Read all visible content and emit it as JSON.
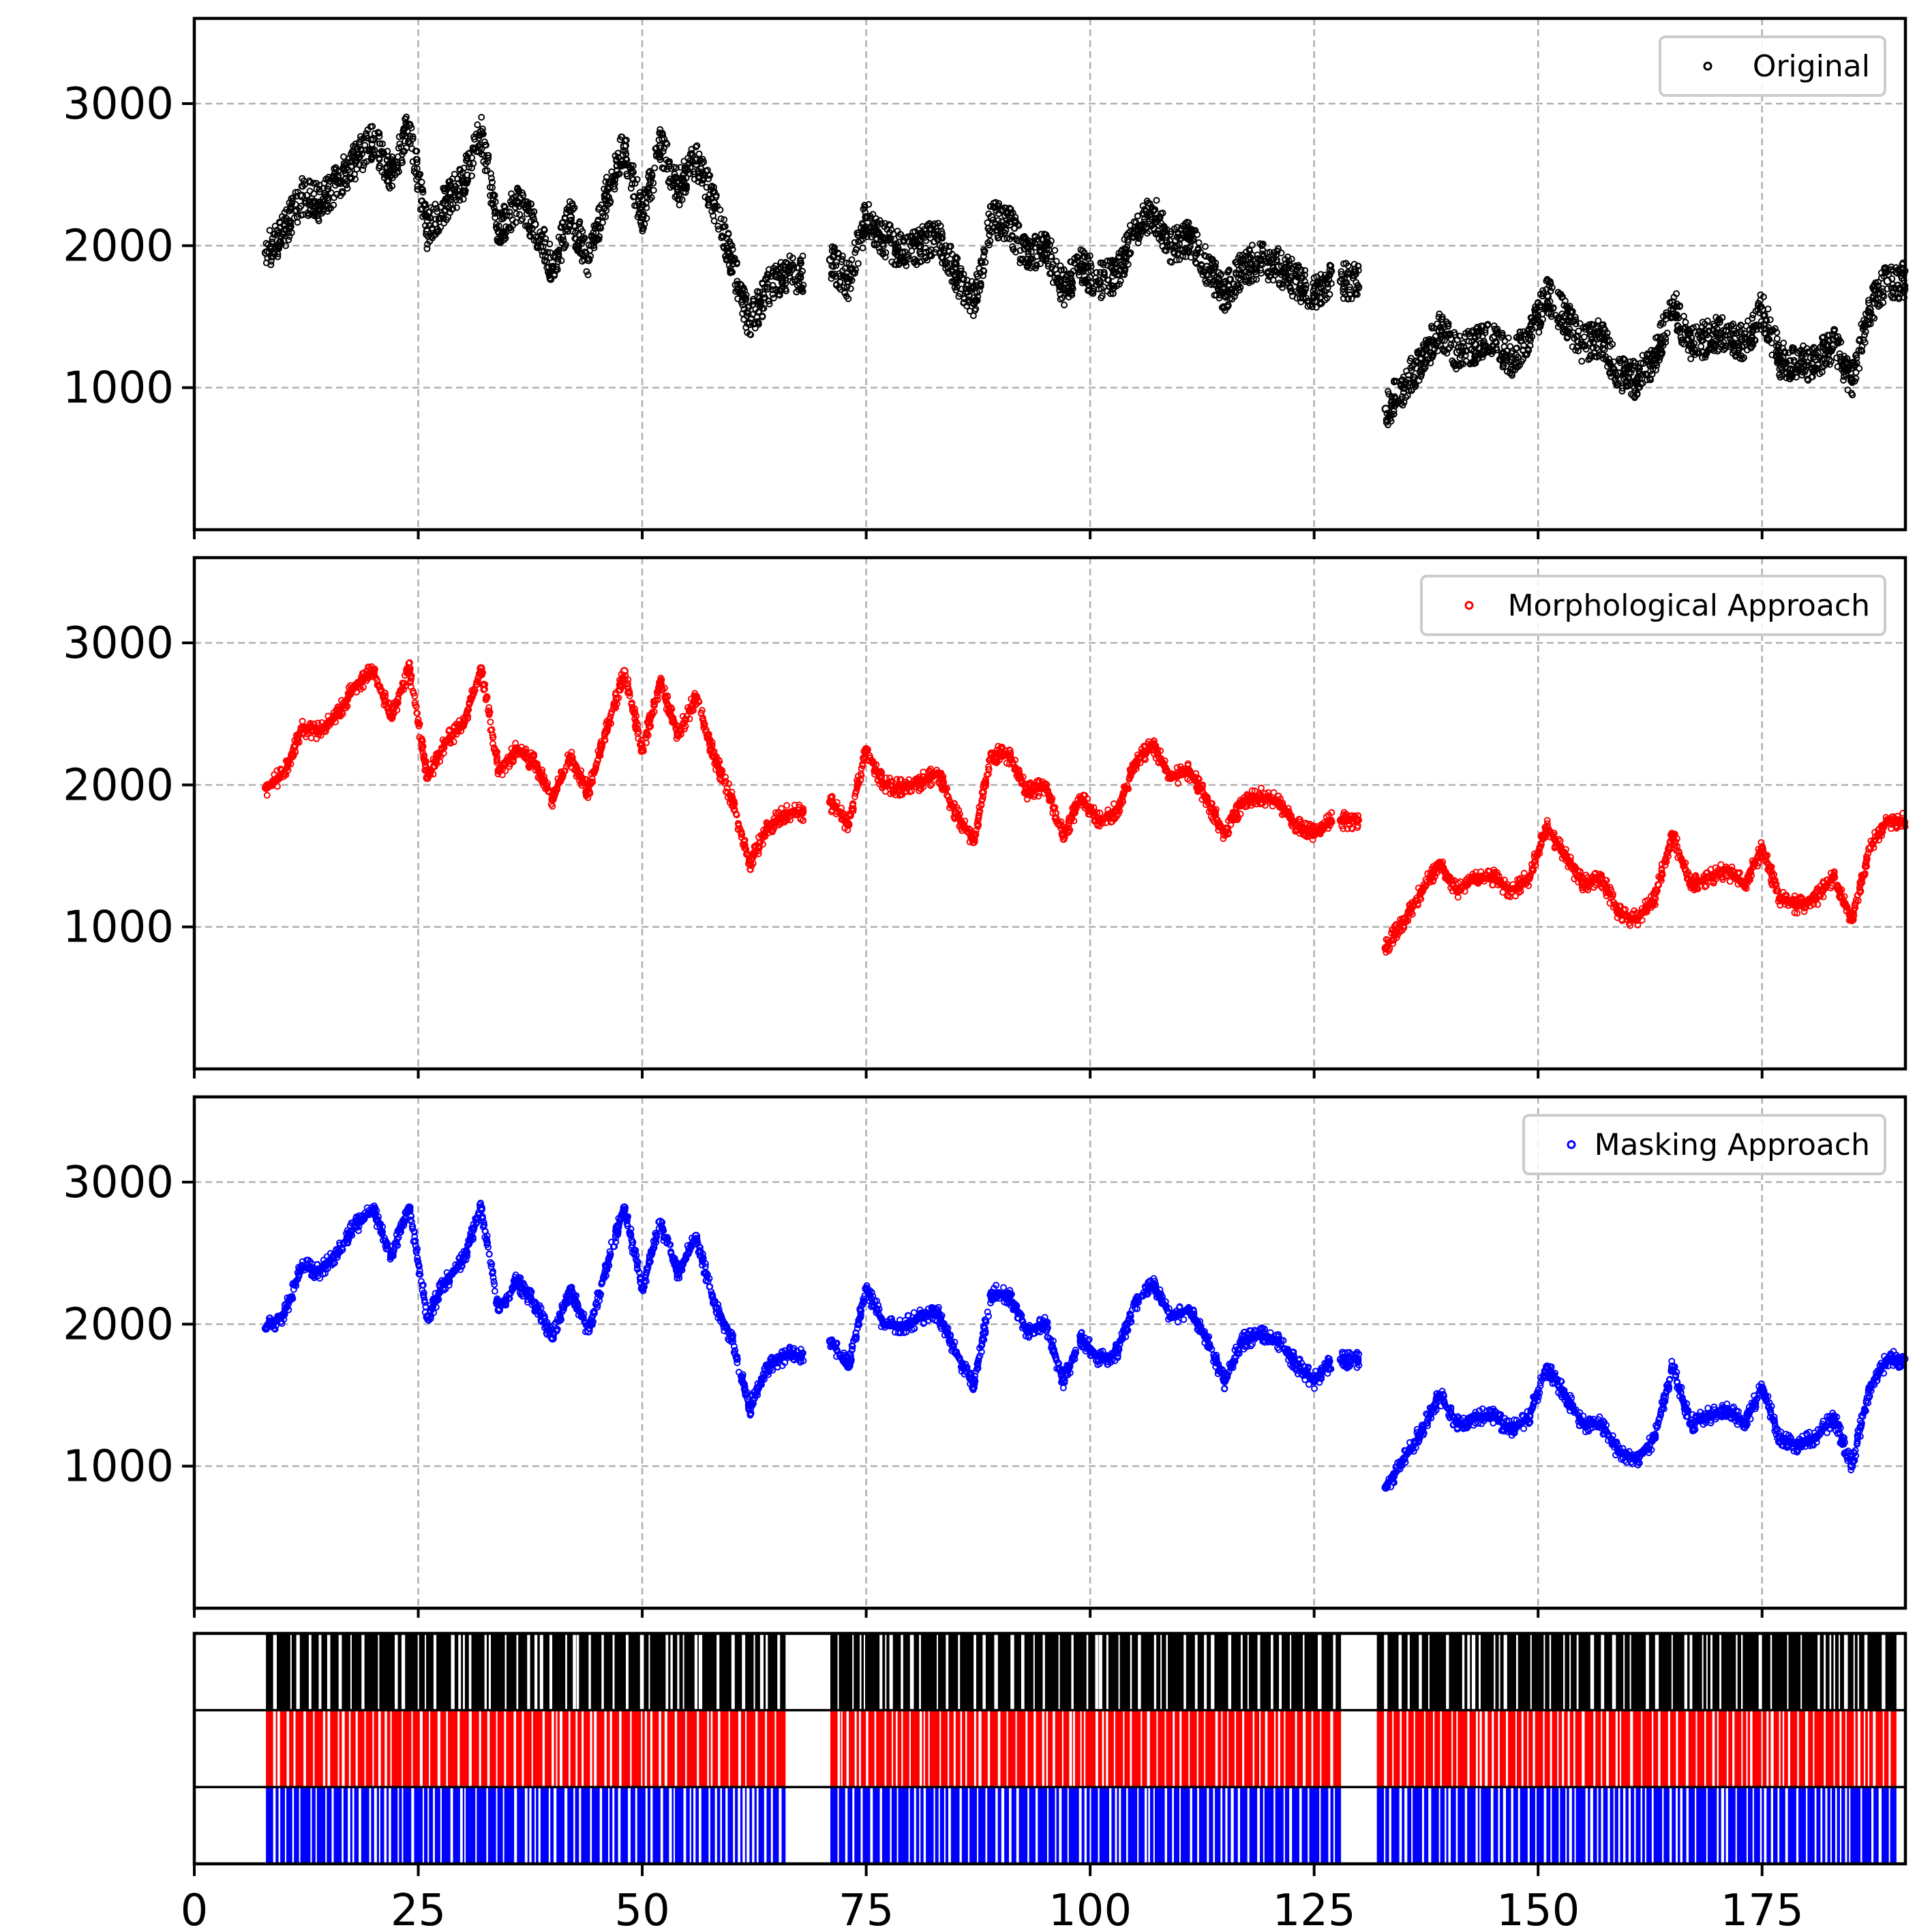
{
  "chart_data": [
    {
      "type": "scatter",
      "panel": "original",
      "xlim": [
        0,
        191
      ],
      "ylim": [
        0,
        3600
      ],
      "yticks": [
        1000,
        2000,
        3000
      ],
      "xticks": [
        0,
        25,
        50,
        75,
        100,
        125,
        150,
        175
      ],
      "grid": true,
      "legend": "top-right",
      "series": [
        {
          "name": "Original",
          "color": "#000000",
          "x": [
            8,
            10,
            12,
            14,
            16,
            18,
            20,
            22,
            24,
            26,
            28,
            30,
            32,
            34,
            36,
            38,
            40,
            42,
            44,
            46,
            48,
            50,
            52,
            54,
            56,
            58,
            60,
            62,
            64,
            66,
            71,
            73,
            75,
            77,
            79,
            81,
            83,
            85,
            87,
            89,
            91,
            93,
            95,
            97,
            99,
            101,
            103,
            105,
            107,
            109,
            111,
            113,
            115,
            117,
            119,
            121,
            123,
            125,
            128,
            133,
            135,
            137,
            139,
            141,
            143,
            145,
            147,
            149,
            151,
            153,
            155,
            157,
            159,
            161,
            163,
            165,
            167,
            169,
            171,
            173,
            175,
            177,
            179,
            181,
            183,
            185,
            187,
            189
          ],
          "y": [
            1950,
            2100,
            2350,
            2300,
            2450,
            2600,
            2750,
            2500,
            2850,
            2100,
            2300,
            2450,
            2800,
            2100,
            2300,
            2150,
            1850,
            2200,
            1900,
            2350,
            2700,
            2200,
            2700,
            2400,
            2600,
            2300,
            1900,
            1450,
            1700,
            1800,
            1900,
            1750,
            2200,
            2050,
            1950,
            2000,
            2050,
            1800,
            1600,
            2200,
            2150,
            1900,
            2000,
            1700,
            1850,
            1750,
            1800,
            2100,
            2250,
            2000,
            2050,
            1850,
            1650,
            1850,
            1900,
            1850,
            1750,
            1650,
            1750,
            850,
            1000,
            1200,
            1400,
            1250,
            1300,
            1350,
            1200,
            1350,
            1650,
            1500,
            1300,
            1350,
            1100,
            1050,
            1200,
            1600,
            1300,
            1350,
            1400,
            1300,
            1550,
            1200,
            1150,
            1200,
            1300,
            1050,
            1550,
            1750
          ]
        }
      ]
    },
    {
      "type": "scatter",
      "panel": "morphological",
      "xlim": [
        0,
        191
      ],
      "ylim": [
        0,
        3600
      ],
      "yticks": [
        1000,
        2000,
        3000
      ],
      "xticks": [
        0,
        25,
        50,
        75,
        100,
        125,
        150,
        175
      ],
      "grid": true,
      "legend": "top-right",
      "series": [
        {
          "name": "Morphological Approach",
          "color": "#ff0000",
          "x": [
            8,
            10,
            12,
            14,
            16,
            18,
            20,
            22,
            24,
            26,
            28,
            30,
            32,
            34,
            36,
            38,
            40,
            42,
            44,
            46,
            48,
            50,
            52,
            54,
            56,
            58,
            60,
            62,
            64,
            66,
            71,
            73,
            75,
            77,
            79,
            81,
            83,
            85,
            87,
            89,
            91,
            93,
            95,
            97,
            99,
            101,
            103,
            105,
            107,
            109,
            111,
            113,
            115,
            117,
            119,
            121,
            123,
            125,
            128,
            133,
            135,
            137,
            139,
            141,
            143,
            145,
            147,
            149,
            151,
            153,
            155,
            157,
            159,
            161,
            163,
            165,
            167,
            169,
            171,
            173,
            175,
            177,
            179,
            181,
            183,
            185,
            187,
            189
          ],
          "y": [
            1980,
            2080,
            2400,
            2380,
            2500,
            2700,
            2800,
            2480,
            2820,
            2050,
            2300,
            2420,
            2820,
            2100,
            2250,
            2150,
            1900,
            2200,
            1950,
            2380,
            2800,
            2250,
            2720,
            2350,
            2620,
            2200,
            1900,
            1450,
            1700,
            1800,
            1880,
            1720,
            2250,
            2000,
            1980,
            2020,
            2080,
            1800,
            1600,
            2220,
            2200,
            1950,
            2000,
            1650,
            1900,
            1750,
            1820,
            2150,
            2280,
            2050,
            2100,
            1900,
            1650,
            1880,
            1920,
            1880,
            1720,
            1650,
            1750,
            850,
            1050,
            1250,
            1450,
            1250,
            1350,
            1350,
            1250,
            1350,
            1700,
            1500,
            1300,
            1350,
            1100,
            1050,
            1200,
            1650,
            1300,
            1350,
            1400,
            1300,
            1550,
            1200,
            1150,
            1200,
            1350,
            1050,
            1550,
            1750
          ]
        }
      ]
    },
    {
      "type": "scatter",
      "panel": "masking",
      "xlim": [
        0,
        191
      ],
      "ylim": [
        0,
        3600
      ],
      "yticks": [
        1000,
        2000,
        3000
      ],
      "xticks": [
        0,
        25,
        50,
        75,
        100,
        125,
        150,
        175
      ],
      "grid": true,
      "legend": "top-right",
      "series": [
        {
          "name": "Masking Approach",
          "color": "#0000ff",
          "x": [
            8,
            10,
            12,
            14,
            16,
            18,
            20,
            22,
            24,
            26,
            28,
            30,
            32,
            34,
            36,
            38,
            40,
            42,
            44,
            46,
            48,
            50,
            52,
            54,
            56,
            58,
            60,
            62,
            64,
            66,
            71,
            73,
            75,
            77,
            79,
            81,
            83,
            85,
            87,
            89,
            91,
            93,
            95,
            97,
            99,
            101,
            103,
            105,
            107,
            109,
            111,
            113,
            115,
            117,
            119,
            121,
            123,
            125,
            128,
            133,
            135,
            137,
            139,
            141,
            143,
            145,
            147,
            149,
            151,
            153,
            155,
            157,
            159,
            161,
            163,
            165,
            167,
            169,
            171,
            173,
            175,
            177,
            179,
            181,
            183,
            185,
            187,
            189
          ],
          "y": [
            1970,
            2070,
            2400,
            2380,
            2500,
            2700,
            2800,
            2480,
            2820,
            2050,
            2300,
            2450,
            2820,
            2100,
            2300,
            2150,
            1900,
            2250,
            1950,
            2400,
            2820,
            2250,
            2720,
            2350,
            2620,
            2150,
            1900,
            1400,
            1700,
            1780,
            1880,
            1700,
            2250,
            2000,
            1980,
            2050,
            2080,
            1800,
            1580,
            2220,
            2200,
            1950,
            2000,
            1600,
            1900,
            1750,
            1800,
            2150,
            2280,
            2050,
            2100,
            1900,
            1600,
            1880,
            1920,
            1880,
            1720,
            1600,
            1750,
            850,
            1050,
            1250,
            1500,
            1300,
            1350,
            1350,
            1250,
            1350,
            1700,
            1500,
            1300,
            1300,
            1100,
            1050,
            1200,
            1700,
            1300,
            1350,
            1400,
            1300,
            1550,
            1200,
            1150,
            1200,
            1350,
            1000,
            1550,
            1750
          ]
        }
      ]
    },
    {
      "type": "heatmap",
      "panel": "availability",
      "xlim": [
        0,
        191
      ],
      "xticks": [
        0,
        25,
        50,
        75,
        100,
        125,
        150,
        175
      ],
      "rows": [
        {
          "color": "#000000",
          "segments": [
            [
              8,
              66
            ],
            [
              71,
              128
            ],
            [
              132,
              190
            ]
          ]
        },
        {
          "color": "#ff0000",
          "segments": [
            [
              8,
              66
            ],
            [
              71,
              128
            ],
            [
              132,
              190
            ]
          ]
        },
        {
          "color": "#0000ff",
          "segments": [
            [
              8,
              66
            ],
            [
              71,
              128
            ],
            [
              132,
              190
            ]
          ]
        }
      ]
    }
  ]
}
